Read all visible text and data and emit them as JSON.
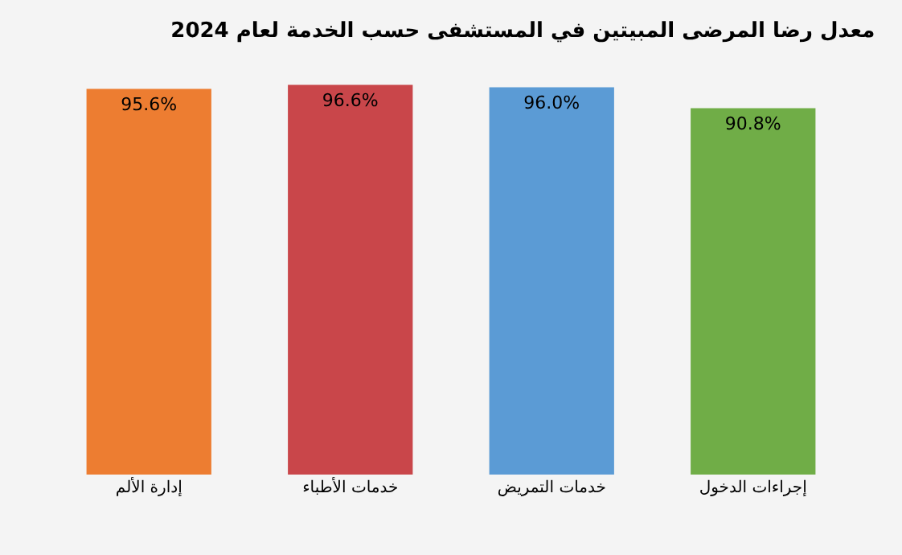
{
  "chart_data": {
    "type": "bar",
    "title": "معدل رضا المرضى المبيتين في المستشفى حسب الخدمة لعام 2024",
    "categories": [
      "إدارة الألم",
      "خدمات الأطباء",
      "خدمات التمريض",
      "إجراءات الدخول"
    ],
    "values": [
      95.6,
      96.6,
      96.0,
      90.8
    ],
    "colors": [
      "#ed7d31",
      "#c9464a",
      "#5b9bd5",
      "#70ad47"
    ],
    "value_labels": [
      "95.6%",
      "96.6%",
      "96.0%",
      "90.8%"
    ],
    "tick_labels": "x",
    "grid": false,
    "legend": false
  }
}
